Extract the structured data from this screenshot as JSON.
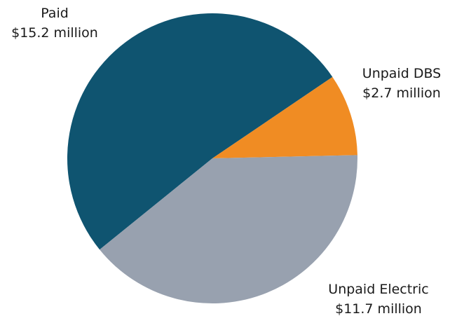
{
  "chart_data": {
    "type": "pie",
    "categories": [
      "Paid",
      "Unpaid DBS",
      "Unpaid Electric"
    ],
    "values": [
      15.2,
      2.7,
      11.7
    ],
    "value_labels": [
      "$15.2 million",
      "$2.7 million",
      "$11.7 million"
    ],
    "colors": [
      "#0f5470",
      "#f08c23",
      "#98a1af"
    ]
  }
}
